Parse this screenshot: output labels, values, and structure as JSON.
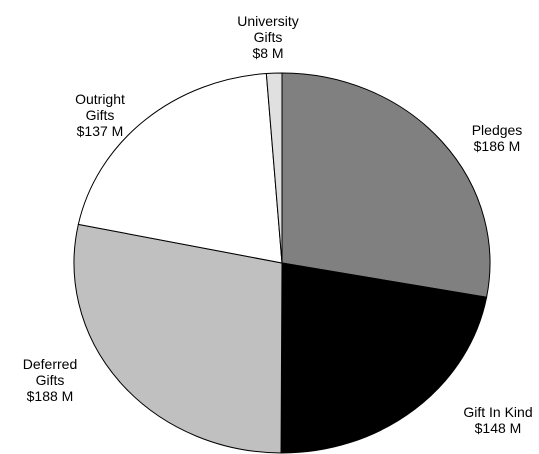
{
  "chart_data": {
    "type": "pie",
    "categories": [
      "Pledges",
      "Gift In Kind",
      "Deferred Gifts",
      "Outright Gifts",
      "University Gifts"
    ],
    "values": [
      186,
      148,
      188,
      137,
      8
    ],
    "value_labels": [
      "$186 M",
      "$148 M",
      "$188 M",
      "$137 M",
      "$8 M"
    ],
    "colors": [
      "#808080",
      "#000000",
      "#c0c0c0",
      "#ffffff",
      "#e0e0e0"
    ]
  }
}
